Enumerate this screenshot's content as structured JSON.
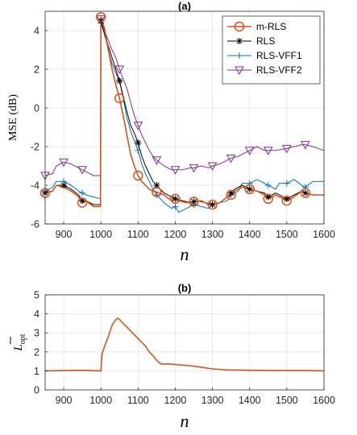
{
  "chart_data": [
    {
      "panel": "(a)",
      "type": "line",
      "title": "(a)",
      "xlabel": "n",
      "ylabel": "MSE (dB)",
      "xlim": [
        850,
        1600
      ],
      "ylim": [
        -6,
        5
      ],
      "xticks": [
        900,
        1000,
        1100,
        1200,
        1300,
        1400,
        1500,
        1600
      ],
      "yticks": [
        -6,
        -4,
        -2,
        0,
        2,
        4
      ],
      "grid": true,
      "legend": "top-right",
      "series": [
        {
          "name": "m-RLS",
          "color": "#d95319",
          "marker": "circle",
          "points": [
            [
              850,
              -4.4
            ],
            [
              870,
              -4.3
            ],
            [
              880,
              -4.0
            ],
            [
              900,
              -4.1
            ],
            [
              920,
              -4.3
            ],
            [
              940,
              -4.6
            ],
            [
              950,
              -4.9
            ],
            [
              960,
              -4.8
            ],
            [
              980,
              -5.1
            ],
            [
              999,
              -5.1
            ],
            [
              1000,
              4.7
            ],
            [
              1010,
              4.1
            ],
            [
              1020,
              3.0
            ],
            [
              1030,
              2.0
            ],
            [
              1040,
              1.2
            ],
            [
              1050,
              0.5
            ],
            [
              1060,
              -0.4
            ],
            [
              1070,
              -1.4
            ],
            [
              1080,
              -2.4
            ],
            [
              1090,
              -3.0
            ],
            [
              1100,
              -3.5
            ],
            [
              1110,
              -3.8
            ],
            [
              1120,
              -4.0
            ],
            [
              1130,
              -4.2
            ],
            [
              1140,
              -4.3
            ],
            [
              1150,
              -4.35
            ],
            [
              1170,
              -4.5
            ],
            [
              1190,
              -4.8
            ],
            [
              1200,
              -4.7
            ],
            [
              1210,
              -4.8
            ],
            [
              1230,
              -4.9
            ],
            [
              1250,
              -4.85
            ],
            [
              1270,
              -4.8
            ],
            [
              1290,
              -5.0
            ],
            [
              1300,
              -5.0
            ],
            [
              1320,
              -4.9
            ],
            [
              1340,
              -4.6
            ],
            [
              1350,
              -4.5
            ],
            [
              1360,
              -4.3
            ],
            [
              1380,
              -4.1
            ],
            [
              1400,
              -4.2
            ],
            [
              1420,
              -4.3
            ],
            [
              1440,
              -4.5
            ],
            [
              1450,
              -4.7
            ],
            [
              1470,
              -4.5
            ],
            [
              1490,
              -4.7
            ],
            [
              1500,
              -4.8
            ],
            [
              1520,
              -4.6
            ],
            [
              1540,
              -4.3
            ],
            [
              1550,
              -4.4
            ],
            [
              1570,
              -4.5
            ],
            [
              1600,
              -4.5
            ]
          ]
        },
        {
          "name": "RLS",
          "color": "#000000",
          "marker": "asterisk",
          "points": [
            [
              850,
              -4.4
            ],
            [
              870,
              -4.3
            ],
            [
              880,
              -4.0
            ],
            [
              900,
              -4.0
            ],
            [
              920,
              -4.2
            ],
            [
              940,
              -4.5
            ],
            [
              950,
              -4.8
            ],
            [
              960,
              -4.8
            ],
            [
              980,
              -5.0
            ],
            [
              999,
              -5.0
            ],
            [
              1000,
              4.5
            ],
            [
              1010,
              3.8
            ],
            [
              1020,
              3.2
            ],
            [
              1030,
              2.6
            ],
            [
              1040,
              2.0
            ],
            [
              1050,
              1.4
            ],
            [
              1060,
              0.6
            ],
            [
              1070,
              -0.2
            ],
            [
              1080,
              -0.9
            ],
            [
              1090,
              -1.3
            ],
            [
              1100,
              -1.8
            ],
            [
              1110,
              -2.5
            ],
            [
              1120,
              -3.0
            ],
            [
              1130,
              -3.4
            ],
            [
              1140,
              -3.8
            ],
            [
              1150,
              -4.0
            ],
            [
              1170,
              -4.4
            ],
            [
              1190,
              -4.6
            ],
            [
              1200,
              -4.7
            ],
            [
              1220,
              -4.8
            ],
            [
              1240,
              -4.9
            ],
            [
              1260,
              -4.8
            ],
            [
              1280,
              -4.9
            ],
            [
              1300,
              -5.0
            ],
            [
              1320,
              -4.9
            ],
            [
              1340,
              -4.6
            ],
            [
              1350,
              -4.4
            ],
            [
              1360,
              -4.2
            ],
            [
              1380,
              -4.0
            ],
            [
              1400,
              -4.2
            ],
            [
              1420,
              -4.3
            ],
            [
              1440,
              -4.4
            ],
            [
              1450,
              -4.6
            ],
            [
              1470,
              -4.4
            ],
            [
              1500,
              -4.7
            ],
            [
              1520,
              -4.5
            ],
            [
              1540,
              -4.3
            ],
            [
              1550,
              -4.4
            ],
            [
              1570,
              -4.5
            ],
            [
              1600,
              -4.5
            ]
          ]
        },
        {
          "name": "RLS-VFF1",
          "color": "#0072bd",
          "marker": "plus",
          "points": [
            [
              850,
              -4.3
            ],
            [
              870,
              -4.1
            ],
            [
              880,
              -3.8
            ],
            [
              900,
              -3.8
            ],
            [
              920,
              -4.0
            ],
            [
              940,
              -4.3
            ],
            [
              960,
              -4.5
            ],
            [
              980,
              -4.6
            ],
            [
              999,
              -4.7
            ],
            [
              1000,
              4.4
            ],
            [
              1010,
              3.8
            ],
            [
              1020,
              3.0
            ],
            [
              1030,
              2.3
            ],
            [
              1040,
              1.8
            ],
            [
              1050,
              1.4
            ],
            [
              1060,
              0.5
            ],
            [
              1070,
              -0.5
            ],
            [
              1080,
              -1.2
            ],
            [
              1090,
              -1.7
            ],
            [
              1100,
              -2.2
            ],
            [
              1110,
              -2.9
            ],
            [
              1120,
              -3.4
            ],
            [
              1130,
              -3.8
            ],
            [
              1140,
              -4.2
            ],
            [
              1150,
              -4.5
            ],
            [
              1170,
              -4.9
            ],
            [
              1190,
              -5.2
            ],
            [
              1200,
              -5.1
            ],
            [
              1210,
              -5.4
            ],
            [
              1230,
              -5.2
            ],
            [
              1250,
              -5.0
            ],
            [
              1270,
              -5.1
            ],
            [
              1290,
              -5.2
            ],
            [
              1300,
              -5.0
            ],
            [
              1320,
              -4.9
            ],
            [
              1340,
              -4.8
            ],
            [
              1350,
              -4.5
            ],
            [
              1370,
              -4.3
            ],
            [
              1380,
              -3.9
            ],
            [
              1400,
              -3.9
            ],
            [
              1420,
              -3.7
            ],
            [
              1440,
              -3.9
            ],
            [
              1450,
              -4.0
            ],
            [
              1470,
              -4.2
            ],
            [
              1480,
              -3.9
            ],
            [
              1500,
              -3.9
            ],
            [
              1520,
              -3.7
            ],
            [
              1540,
              -4.0
            ],
            [
              1550,
              -4.1
            ],
            [
              1570,
              -3.8
            ],
            [
              1600,
              -3.8
            ]
          ]
        },
        {
          "name": "RLS-VFF2",
          "color": "#7e2f8e",
          "marker": "triangle-down",
          "points": [
            [
              850,
              -3.5
            ],
            [
              870,
              -3.4
            ],
            [
              880,
              -3.0
            ],
            [
              900,
              -2.8
            ],
            [
              920,
              -2.9
            ],
            [
              940,
              -3.1
            ],
            [
              960,
              -3.3
            ],
            [
              980,
              -3.5
            ],
            [
              999,
              -3.5
            ],
            [
              1000,
              4.6
            ],
            [
              1010,
              4.0
            ],
            [
              1020,
              3.5
            ],
            [
              1030,
              3.0
            ],
            [
              1040,
              2.6
            ],
            [
              1050,
              2.0
            ],
            [
              1060,
              1.5
            ],
            [
              1070,
              1.0
            ],
            [
              1080,
              0.3
            ],
            [
              1090,
              -0.4
            ],
            [
              1100,
              -0.9
            ],
            [
              1110,
              -1.4
            ],
            [
              1120,
              -1.8
            ],
            [
              1130,
              -2.2
            ],
            [
              1140,
              -2.5
            ],
            [
              1150,
              -2.7
            ],
            [
              1170,
              -3.0
            ],
            [
              1190,
              -3.2
            ],
            [
              1200,
              -3.2
            ],
            [
              1220,
              -3.2
            ],
            [
              1240,
              -3.1
            ],
            [
              1250,
              -3.1
            ],
            [
              1270,
              -3.0
            ],
            [
              1290,
              -3.1
            ],
            [
              1300,
              -3.0
            ],
            [
              1320,
              -2.9
            ],
            [
              1340,
              -2.7
            ],
            [
              1350,
              -2.6
            ],
            [
              1370,
              -2.5
            ],
            [
              1380,
              -2.4
            ],
            [
              1400,
              -2.2
            ],
            [
              1420,
              -2.0
            ],
            [
              1440,
              -2.2
            ],
            [
              1450,
              -2.2
            ],
            [
              1470,
              -2.2
            ],
            [
              1500,
              -2.1
            ],
            [
              1520,
              -2.0
            ],
            [
              1540,
              -1.9
            ],
            [
              1550,
              -1.9
            ],
            [
              1570,
              -2.0
            ],
            [
              1600,
              -2.2
            ]
          ]
        }
      ]
    },
    {
      "panel": "(b)",
      "type": "line",
      "title": "(b)",
      "xlabel": "n",
      "ylabel": "L̄_opt",
      "xlim": [
        850,
        1600
      ],
      "ylim": [
        0,
        5
      ],
      "xticks": [
        900,
        1000,
        1100,
        1200,
        1300,
        1400,
        1500,
        1600
      ],
      "yticks": [
        0,
        1,
        2,
        3,
        4,
        5
      ],
      "grid": true,
      "series": [
        {
          "color": "#d95319",
          "points": [
            [
              850,
              1.0
            ],
            [
              900,
              1.02
            ],
            [
              950,
              1.03
            ],
            [
              999,
              1.0
            ],
            [
              1000,
              1.0
            ],
            [
              1003,
              1.9
            ],
            [
              1010,
              2.3
            ],
            [
              1020,
              2.8
            ],
            [
              1030,
              3.4
            ],
            [
              1040,
              3.7
            ],
            [
              1045,
              3.77
            ],
            [
              1050,
              3.7
            ],
            [
              1060,
              3.5
            ],
            [
              1070,
              3.3
            ],
            [
              1080,
              3.1
            ],
            [
              1090,
              2.9
            ],
            [
              1100,
              2.7
            ],
            [
              1110,
              2.5
            ],
            [
              1120,
              2.3
            ],
            [
              1130,
              2.0
            ],
            [
              1140,
              1.8
            ],
            [
              1150,
              1.55
            ],
            [
              1160,
              1.38
            ],
            [
              1170,
              1.35
            ],
            [
              1180,
              1.37
            ],
            [
              1200,
              1.34
            ],
            [
              1220,
              1.3
            ],
            [
              1240,
              1.27
            ],
            [
              1260,
              1.22
            ],
            [
              1280,
              1.16
            ],
            [
              1300,
              1.1
            ],
            [
              1340,
              1.05
            ],
            [
              1400,
              1.03
            ],
            [
              1450,
              1.02
            ],
            [
              1500,
              1.02
            ],
            [
              1550,
              1.02
            ],
            [
              1600,
              1.0
            ]
          ]
        }
      ]
    }
  ]
}
